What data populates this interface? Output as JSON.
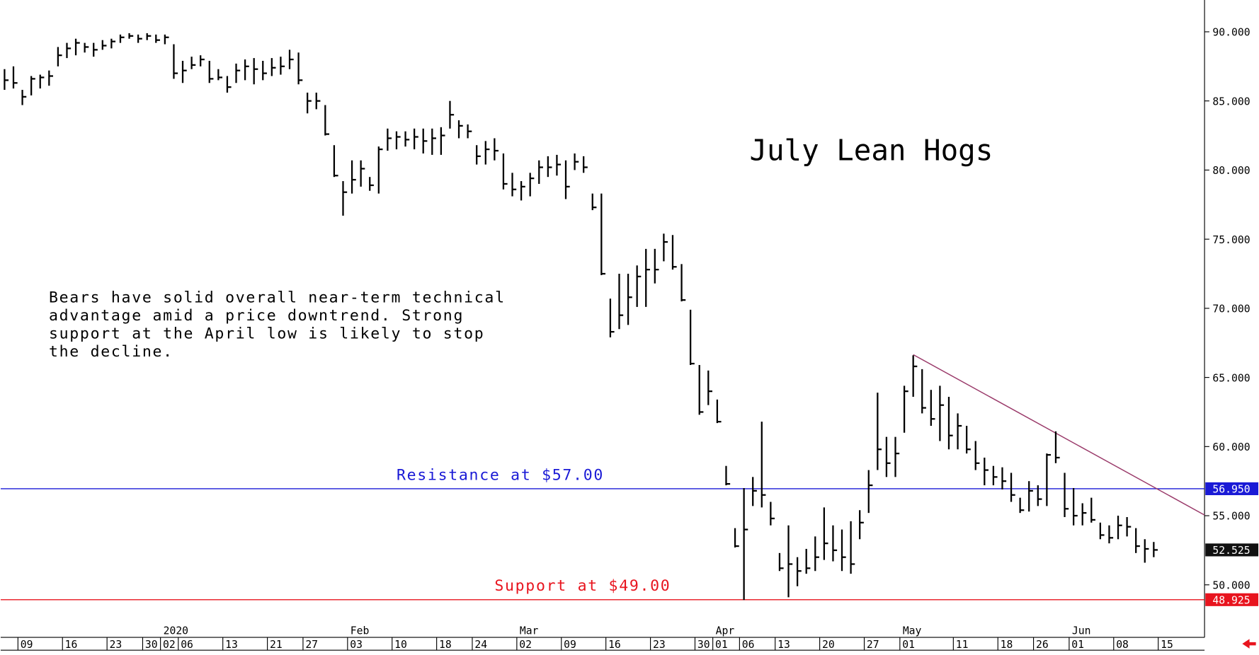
{
  "chart_data": {
    "type": "ohlc",
    "title": "July Lean Hogs",
    "note": [
      "Bears have solid overall near-term technical",
      "advantage amid a price downtrend. Strong",
      "support at the April low is likely to stop",
      "the decline."
    ],
    "annotations": [
      {
        "text": "Resistance at $57.00",
        "color": "#1a1ad6",
        "y": 57.0,
        "x": 44
      },
      {
        "text": "Support at $49.00",
        "color": "#e8141e",
        "y": 49.0,
        "x": 55
      }
    ],
    "color": "#000000",
    "categories": [
      null,
      null,
      "09",
      null,
      null,
      null,
      null,
      "16",
      null,
      null,
      null,
      null,
      "23",
      null,
      null,
      null,
      "30",
      null,
      "02",
      null,
      "06",
      null,
      null,
      null,
      null,
      "13",
      null,
      null,
      null,
      null,
      "21",
      null,
      null,
      null,
      "27",
      null,
      null,
      null,
      null,
      "03",
      null,
      null,
      null,
      null,
      "10",
      null,
      null,
      null,
      null,
      "18",
      null,
      null,
      null,
      "24",
      null,
      null,
      null,
      null,
      "02",
      null,
      null,
      null,
      null,
      "09",
      null,
      null,
      null,
      null,
      "16",
      null,
      null,
      null,
      null,
      "23",
      null,
      null,
      null,
      null,
      "30",
      null,
      "01",
      null,
      null,
      "06",
      null,
      null,
      null,
      "13",
      null,
      null,
      null,
      null,
      "20",
      null,
      null,
      null,
      null,
      "27",
      null,
      null,
      null,
      "01",
      null,
      null,
      null,
      null,
      null,
      "11",
      null,
      null,
      null,
      null,
      "18",
      null,
      null,
      null,
      "26",
      null,
      null,
      null,
      "01",
      null,
      null,
      null,
      null,
      "08",
      null,
      null,
      null,
      null,
      "15",
      null,
      null,
      null,
      null
    ],
    "months": [
      {
        "index": 18,
        "label": "2020"
      },
      {
        "index": 39,
        "label": "Feb"
      },
      {
        "index": 58,
        "label": "Mar"
      },
      {
        "index": 80,
        "label": "Apr"
      },
      {
        "index": 101,
        "label": "May"
      },
      {
        "index": 120,
        "label": "Jun"
      }
    ],
    "high": [
      87.3,
      87.5,
      85.8,
      86.8,
      86.9,
      87.2,
      88.9,
      89.2,
      89.5,
      89.2,
      89.2,
      89.4,
      89.5,
      89.8,
      89.9,
      89.8,
      89.9,
      89.8,
      89.8,
      89.1,
      87.9,
      88.2,
      88.3,
      87.9,
      87.3,
      86.8,
      87.7,
      88.0,
      88.1,
      87.9,
      88.1,
      88.2,
      88.7,
      88.5,
      85.6,
      85.6,
      84.7,
      81.8,
      79.2,
      80.7,
      80.7,
      79.5,
      81.7,
      83.0,
      82.8,
      82.8,
      83.0,
      83.0,
      83.0,
      83.1,
      85.0,
      83.6,
      83.3,
      81.8,
      82.1,
      82.3,
      81.2,
      79.8,
      79.2,
      79.8,
      80.7,
      81.0,
      81.1,
      80.7,
      81.2,
      81.0,
      78.3,
      78.3,
      70.7,
      72.5,
      72.5,
      73.1,
      74.3,
      74.3,
      75.4,
      75.3,
      73.2,
      69.9,
      65.9,
      65.5,
      63.4,
      58.6,
      54.1,
      57.0,
      57.8,
      61.8,
      56.0,
      52.3,
      54.3,
      52.0,
      52.6,
      53.5,
      55.6,
      54.3,
      54.0,
      54.6,
      55.4,
      58.3,
      63.9,
      60.7,
      60.7,
      64.4,
      66.6,
      65.6,
      64.1,
      64.4,
      63.6,
      62.4,
      61.5,
      60.4,
      59.2,
      58.6,
      58.5,
      58.1,
      56.3,
      57.5,
      57.2,
      59.5,
      61.1,
      58.1,
      57.0,
      55.9,
      56.3,
      54.5,
      54.3,
      55.0,
      54.9,
      54.1,
      53.3,
      53.1,
      null,
      null,
      null,
      null,
      null
    ],
    "low": [
      85.8,
      85.9,
      84.7,
      85.4,
      85.9,
      86.1,
      87.5,
      88.1,
      88.3,
      88.5,
      88.2,
      88.7,
      88.8,
      89.2,
      89.5,
      89.2,
      89.4,
      89.2,
      89.1,
      86.6,
      86.3,
      87.3,
      87.5,
      86.3,
      86.5,
      85.6,
      86.3,
      86.5,
      86.2,
      86.5,
      86.8,
      86.9,
      87.3,
      86.2,
      84.1,
      84.4,
      82.5,
      79.5,
      76.7,
      78.3,
      78.8,
      78.5,
      78.3,
      81.4,
      81.5,
      81.7,
      81.5,
      81.2,
      81.1,
      81.1,
      83.0,
      82.3,
      82.3,
      80.4,
      80.4,
      80.7,
      78.6,
      78.1,
      77.8,
      78.1,
      79.0,
      79.5,
      79.6,
      77.9,
      80.0,
      79.8,
      77.1,
      72.4,
      67.9,
      68.5,
      68.8,
      70.1,
      70.1,
      71.8,
      73.4,
      72.8,
      70.5,
      65.9,
      62.3,
      63.0,
      61.7,
      57.2,
      52.7,
      48.9,
      55.7,
      55.6,
      54.3,
      51.0,
      49.1,
      49.9,
      50.8,
      51.0,
      51.8,
      51.7,
      51.0,
      50.8,
      53.3,
      55.2,
      58.3,
      57.8,
      57.8,
      61.0,
      63.6,
      62.4,
      61.5,
      60.4,
      59.8,
      59.8,
      59.5,
      58.3,
      57.2,
      57.2,
      56.9,
      56.0,
      55.2,
      55.3,
      55.7,
      55.7,
      58.8,
      54.9,
      54.3,
      54.3,
      54.5,
      53.3,
      53.0,
      53.3,
      53.5,
      52.3,
      51.6,
      52.0,
      null,
      null,
      null,
      null,
      null
    ],
    "close": [
      86.5,
      86.3,
      85.3,
      86.6,
      86.7,
      86.8,
      88.3,
      88.8,
      89.2,
      88.9,
      88.7,
      89.0,
      89.3,
      89.6,
      89.7,
      89.5,
      89.7,
      89.4,
      89.6,
      87.0,
      87.2,
      87.6,
      88.0,
      86.6,
      86.7,
      86.0,
      87.2,
      87.5,
      87.3,
      87.0,
      87.4,
      87.5,
      88.0,
      86.5,
      85.0,
      85.0,
      82.6,
      79.6,
      78.4,
      79.3,
      80.1,
      78.9,
      81.5,
      82.3,
      82.4,
      82.2,
      82.4,
      82.1,
      82.3,
      82.5,
      84.0,
      83.2,
      82.8,
      81.0,
      81.5,
      81.4,
      79.0,
      78.6,
      78.8,
      79.4,
      80.2,
      80.2,
      80.4,
      78.8,
      80.6,
      80.2,
      77.3,
      72.5,
      68.3,
      69.5,
      70.8,
      72.3,
      72.8,
      72.8,
      74.8,
      73.0,
      70.6,
      66.0,
      62.5,
      64.0,
      61.8,
      57.3,
      52.8,
      54.0,
      56.8,
      56.5,
      54.8,
      51.2,
      51.5,
      51.0,
      51.2,
      52.0,
      53.0,
      52.5,
      52.0,
      51.5,
      54.5,
      57.2,
      59.8,
      58.8,
      59.5,
      64.0,
      65.8,
      62.8,
      62.0,
      63.0,
      60.8,
      61.5,
      59.8,
      58.8,
      58.3,
      57.8,
      57.5,
      56.5,
      55.4,
      56.8,
      56.2,
      59.4,
      59.2,
      55.5,
      55.0,
      55.2,
      54.7,
      53.6,
      53.4,
      54.3,
      54.2,
      52.8,
      52.6,
      52.525,
      null,
      null,
      null,
      null,
      null
    ],
    "levels": [
      {
        "value": 56.95,
        "label": "56.950",
        "color": "#1a1ad6"
      },
      {
        "value": 48.925,
        "label": "48.925",
        "color": "#e8141e"
      }
    ],
    "last_price": {
      "value": 52.525,
      "label": "52.525",
      "color": "#111111"
    },
    "trendline": {
      "x": [
        102,
        134.7
      ],
      "y": [
        66.65,
        55.05
      ],
      "color": "#9a3a6a"
    },
    "ylim": [
      46.2,
      92.3
    ],
    "yticks": [
      {
        "value": 50,
        "label": "50.000"
      },
      {
        "value": 55,
        "label": "55.000"
      },
      {
        "value": 60,
        "label": "60.000"
      },
      {
        "value": 65,
        "label": "65.000"
      },
      {
        "value": 70,
        "label": "70.000"
      },
      {
        "value": 75,
        "label": "75.000"
      },
      {
        "value": 80,
        "label": "80.000"
      },
      {
        "value": 85,
        "label": "85.000"
      },
      {
        "value": 90,
        "label": "90.000"
      }
    ]
  }
}
